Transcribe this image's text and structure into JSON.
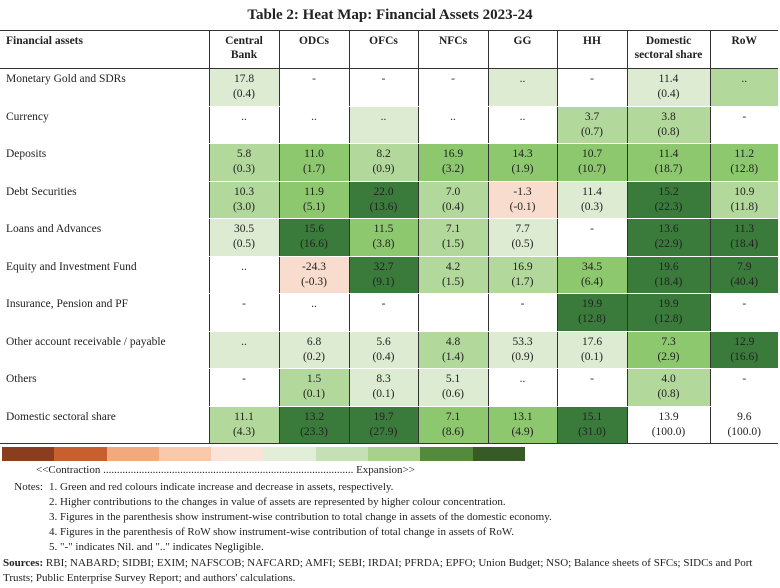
{
  "title": "Table 2: Heat Map: Financial Assets 2023-24",
  "columns": [
    "Financial assets",
    "Central Bank",
    "ODCs",
    "OFCs",
    "NFCs",
    "GG",
    "HH",
    "Domestic sectoral share",
    "RoW"
  ],
  "colors": {
    "l0": "#ffffff",
    "l1": "#dcebd2",
    "l2": "#b3d89b",
    "l3": "#8dc76e",
    "l4": "#3a7b3c",
    "r1": "#f8dccd"
  },
  "rows": [
    {
      "label": "Monetary Gold and SDRs",
      "cells": [
        [
          "17.8",
          "(0.4)",
          "l1"
        ],
        [
          "-",
          "",
          "l0"
        ],
        [
          "-",
          "",
          "l0"
        ],
        [
          "-",
          "",
          "l0"
        ],
        [
          "..",
          "",
          "l1"
        ],
        [
          "-",
          "",
          "l0"
        ],
        [
          "11.4",
          "(0.4)",
          "l1"
        ],
        [
          "..",
          "",
          "l2"
        ]
      ]
    },
    {
      "label": "Currency",
      "cells": [
        [
          "..",
          "",
          "l0"
        ],
        [
          "..",
          "",
          "l0"
        ],
        [
          "..",
          "",
          "l1"
        ],
        [
          "..",
          "",
          "l0"
        ],
        [
          "..",
          "",
          "l0"
        ],
        [
          "3.7",
          "(0.7)",
          "l2"
        ],
        [
          "3.8",
          "(0.8)",
          "l2"
        ],
        [
          "-",
          "",
          "l0"
        ]
      ]
    },
    {
      "label": "Deposits",
      "cells": [
        [
          "5.8",
          "(0.3)",
          "l2"
        ],
        [
          "11.0",
          "(1.7)",
          "l3"
        ],
        [
          "8.2",
          "(0.9)",
          "l2"
        ],
        [
          "16.9",
          "(3.2)",
          "l3"
        ],
        [
          "14.3",
          "(1.9)",
          "l3"
        ],
        [
          "10.7",
          "(10.7)",
          "l3"
        ],
        [
          "11.4",
          "(18.7)",
          "l3"
        ],
        [
          "11.2",
          "(12.8)",
          "l3"
        ]
      ]
    },
    {
      "label": "Debt Securities",
      "cells": [
        [
          "10.3",
          "(3.0)",
          "l2"
        ],
        [
          "11.9",
          "(5.1)",
          "l3"
        ],
        [
          "22.0",
          "(13.6)",
          "l4"
        ],
        [
          "7.0",
          "(0.4)",
          "l2"
        ],
        [
          "-1.3",
          "(-0.1)",
          "r1"
        ],
        [
          "11.4",
          "(0.3)",
          "l1"
        ],
        [
          "15.2",
          "(22.3)",
          "l4"
        ],
        [
          "10.9",
          "(11.8)",
          "l2"
        ]
      ]
    },
    {
      "label": "Loans and Advances",
      "cells": [
        [
          "30.5",
          "(0.5)",
          "l1"
        ],
        [
          "15.6",
          "(16.6)",
          "l4"
        ],
        [
          "11.5",
          "(3.8)",
          "l3"
        ],
        [
          "7.1",
          "(1.5)",
          "l2"
        ],
        [
          "7.7",
          "(0.5)",
          "l1"
        ],
        [
          "-",
          "",
          "l0"
        ],
        [
          "13.6",
          "(22.9)",
          "l4"
        ],
        [
          "11.3",
          "(18.4)",
          "l4"
        ]
      ]
    },
    {
      "label": "Equity and Investment Fund",
      "cells": [
        [
          "..",
          "",
          "l0"
        ],
        [
          "-24.3",
          "(-0.3)",
          "r1"
        ],
        [
          "32.7",
          "(9.1)",
          "l4"
        ],
        [
          "4.2",
          "(1.5)",
          "l2"
        ],
        [
          "16.9",
          "(1.7)",
          "l2"
        ],
        [
          "34.5",
          "(6.4)",
          "l3"
        ],
        [
          "19.6",
          "(18.4)",
          "l4"
        ],
        [
          "7.9",
          "(40.4)",
          "l4"
        ]
      ]
    },
    {
      "label": "Insurance, Pension and PF",
      "cells": [
        [
          "-",
          "",
          "l0"
        ],
        [
          "..",
          "",
          "l0"
        ],
        [
          "-",
          "",
          "l0"
        ],
        [
          "",
          "",
          "l0"
        ],
        [
          "-",
          "",
          "l0"
        ],
        [
          "19.9",
          "(12.8)",
          "l4"
        ],
        [
          "19.9",
          "(12.8)",
          "l4"
        ],
        [
          "-",
          "",
          "l0"
        ]
      ]
    },
    {
      "label": "Other account receivable / payable",
      "cells": [
        [
          "..",
          "",
          "l1"
        ],
        [
          "6.8",
          "(0.2)",
          "l1"
        ],
        [
          "5.6",
          "(0.4)",
          "l1"
        ],
        [
          "4.8",
          "(1.4)",
          "l2"
        ],
        [
          "53.3",
          "(0.9)",
          "l1"
        ],
        [
          "17.6",
          "(0.1)",
          "l1"
        ],
        [
          "7.3",
          "(2.9)",
          "l3"
        ],
        [
          "12.9",
          "(16.6)",
          "l4"
        ]
      ]
    },
    {
      "label": "Others",
      "cells": [
        [
          "-",
          "",
          "l0"
        ],
        [
          "1.5",
          "(0.1)",
          "l2"
        ],
        [
          "8.3",
          "(0.1)",
          "l1"
        ],
        [
          "5.1",
          "(0.6)",
          "l1"
        ],
        [
          "..",
          "",
          "l0"
        ],
        [
          "-",
          "",
          "l0"
        ],
        [
          "4.0",
          "(0.8)",
          "l2"
        ],
        [
          "-",
          "",
          "l0"
        ]
      ]
    },
    {
      "label": "Domestic sectoral share",
      "cells": [
        [
          "11.1",
          "(4.3)",
          "l2"
        ],
        [
          "13.2",
          "(23.3)",
          "l4"
        ],
        [
          "19.7",
          "(27.9)",
          "l4"
        ],
        [
          "7.1",
          "(8.6)",
          "l3"
        ],
        [
          "13.1",
          "(4.9)",
          "l3"
        ],
        [
          "15.1",
          "(31.0)",
          "l4"
        ],
        [
          "13.9",
          "(100.0)",
          "l0"
        ],
        [
          "9.6",
          "(100.0)",
          "l0"
        ]
      ]
    }
  ],
  "legend": {
    "colors": [
      "#8b3e1f",
      "#c75f2e",
      "#f2a97b",
      "#f8c9aa",
      "#fae4d8",
      "#e2eed8",
      "#c6e0b5",
      "#a9d18e",
      "#548a3e",
      "#375b27"
    ],
    "scale_text": "<<Contraction ........................................................................................... Expansion>>"
  },
  "notes": {
    "label": "Notes:",
    "items": [
      "1.  Green and red colours indicate increase and decrease in assets, respectively.",
      "2.  Higher contributions to the changes in value of assets are represented by higher colour concentration.",
      "3.  Figures in the parenthesis show instrument-wise contribution to total change in assets of the domestic economy.",
      "4.  Figures in the parenthesis of RoW show instrument-wise contribution of total change in assets of RoW.",
      "5.  \"-\" indicates Nil. and \"..\" indicates Negligible."
    ]
  },
  "sources": {
    "label": "Sources:",
    "text": " RBI; NABARD; SIDBI; EXIM; NAFSCOB; NAFCARD; AMFI; SEBI; IRDAI; PFRDA; EPFO; Union Budget; NSO; Balance sheets of SFCs; SIDCs and Port Trusts; Public Enterprise Survey Report; and authors' calculations."
  }
}
